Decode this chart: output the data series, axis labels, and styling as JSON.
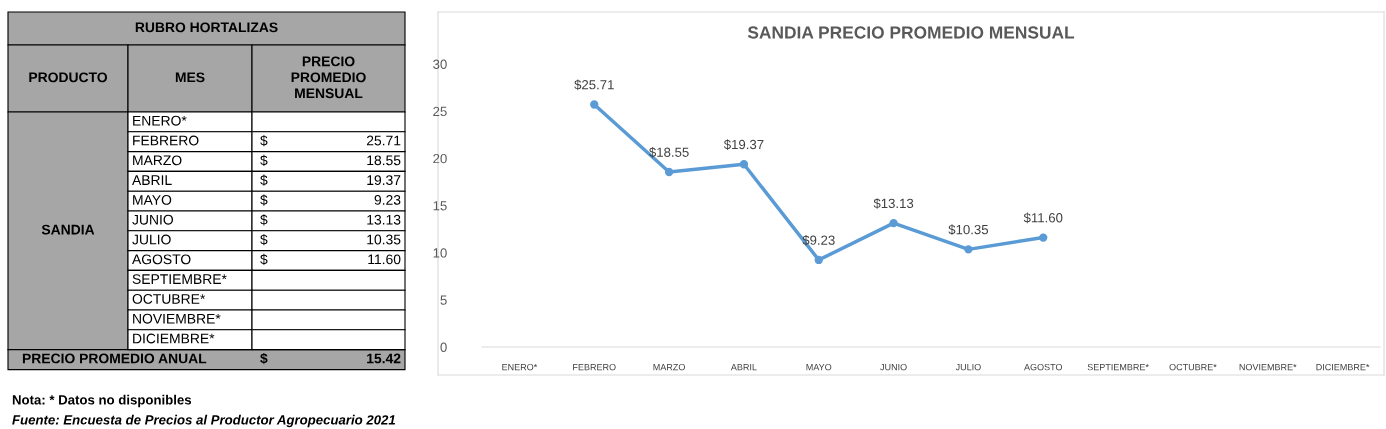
{
  "chart_data": [
    {
      "type": "other",
      "title": "RUBRO HORTALIZAS",
      "categories": [
        "ENERO*",
        "FEBRERO",
        "MARZO",
        "ABRIL",
        "MAYO",
        "JUNIO",
        "JULIO",
        "AGOSTO",
        "SEPTIEMBRE*",
        "OCTUBRE*",
        "NOVIEMBRE*",
        "DICIEMBRE*"
      ],
      "value_labels": [
        null,
        "$ 25.71",
        "$ 18.55",
        "$ 19.37",
        "$ 9.23",
        "$ 13.13",
        "$ 10.35",
        "$ 11.60",
        null,
        null,
        null,
        null
      ],
      "annotations": [
        "PRODUCTO",
        "MES",
        "PRECIO\nPROMEDIO\nMENSUAL",
        "SANDIA",
        "PRECIO PROMEDIO ANUAL",
        "$ 15.42",
        "Nota: * Datos no disponibles",
        "Fuente: Encuesta de Precios al Productor Agropecuario 2021"
      ]
    },
    {
      "type": "line",
      "title": "SANDIA PRECIO PROMEDIO MENSUAL",
      "categories": [
        "ENERO*",
        "FEBRERO",
        "MARZO",
        "ABRIL",
        "MAYO",
        "JUNIO",
        "JULIO",
        "AGOSTO",
        "SEPTIEMBRE*",
        "OCTUBRE*",
        "NOVIEMBRE*",
        "DICIEMBRE*"
      ],
      "values": [
        null,
        25.71,
        18.55,
        19.37,
        9.23,
        13.13,
        10.35,
        11.6,
        null,
        null,
        null,
        null
      ],
      "value_labels": [
        null,
        "$25.71",
        "$18.55",
        "$19.37",
        "$9.23",
        "$13.13",
        "$10.35",
        "$11.60",
        null,
        null,
        null,
        null
      ],
      "color": "#5b9bd5",
      "marker": "circle",
      "line_style": "solid",
      "ylim": [
        0,
        30
      ],
      "yticks": [
        0,
        5,
        10,
        15,
        20,
        25,
        30
      ],
      "grid": false,
      "legend": false
    }
  ]
}
